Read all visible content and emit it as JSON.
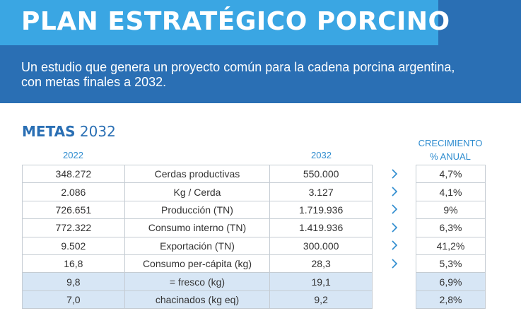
{
  "header": {
    "title": "PLAN ESTRATÉGICO PORCINO",
    "subtitle_line1": "Un estudio que genera un proyecto común para la cadena porcina argentina,",
    "subtitle_line2": "con metas finales a 2032."
  },
  "section": {
    "title_bold": "METAS",
    "title_year": "2032"
  },
  "columns": {
    "year_start": "2022",
    "year_end": "2032",
    "growth_line1": "CRECIMIENTO",
    "growth_line2": "% ANUAL"
  },
  "rows": [
    {
      "v2022": "348.272",
      "label": "Cerdas productivas",
      "v2032": "550.000",
      "growth": "4,7%"
    },
    {
      "v2022": "2.086",
      "label": "Kg / Cerda",
      "v2032": "3.127",
      "growth": "4,1%"
    },
    {
      "v2022": "726.651",
      "label": "Producción (TN)",
      "v2032": "1.719.936",
      "growth": "9%"
    },
    {
      "v2022": "772.322",
      "label": "Consumo interno (TN)",
      "v2032": "1.419.936",
      "growth": "6,3%"
    },
    {
      "v2022": "9.502",
      "label": "Exportación (TN)",
      "v2032": "300.000",
      "growth": "41,2%"
    },
    {
      "v2022": "16,8",
      "label": "Consumo per-cápita (kg)",
      "v2032": "28,3",
      "growth": "5,3%"
    },
    {
      "v2022": "9,8",
      "label": "= fresco (kg)",
      "v2032": "19,1",
      "growth": "6,9%"
    },
    {
      "v2022": "7,0",
      "label": "chacinados (kg eq)",
      "v2032": "9,2",
      "growth": "2,8%"
    }
  ],
  "icons": {
    "arrow": "chevron-right-icon"
  },
  "colors": {
    "header_dark": "#2a6fb4",
    "header_light": "#3aa6e3",
    "accent_text": "#2e8ccf",
    "sub_row_bg": "#d7e6f5"
  }
}
